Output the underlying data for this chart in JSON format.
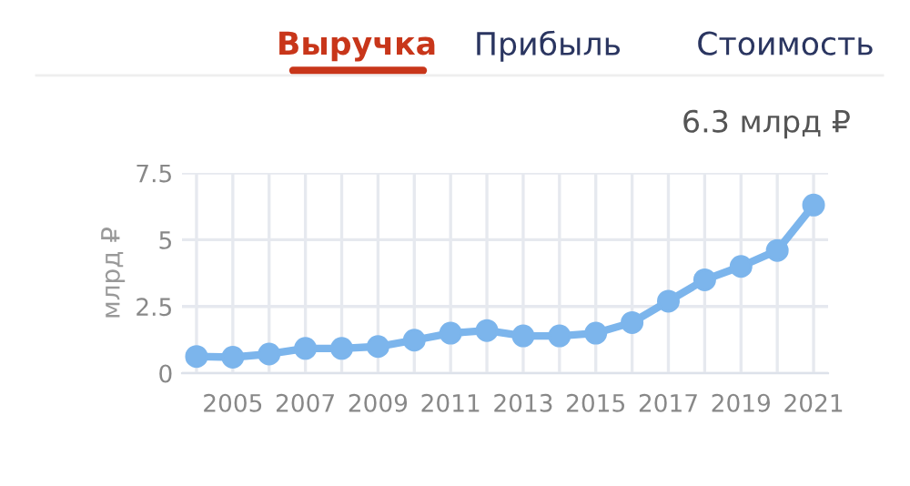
{
  "chart_data": {
    "type": "line",
    "title": "Выручка",
    "subtitle": "6.3 млрд ₽",
    "annotations": [
      "Прибыль",
      "Стоимость"
    ],
    "ylabel": "млрд ₽",
    "categories": [
      null,
      "2005",
      null,
      "2007",
      null,
      "2009",
      null,
      "2011",
      null,
      "2013",
      null,
      "2015",
      null,
      "2017",
      null,
      "2019",
      null,
      "2021"
    ],
    "series": [
      {
        "color": "#7cb5ec",
        "values": [
          0.63,
          0.6,
          0.72,
          0.93,
          0.93,
          1.0,
          1.24,
          1.5,
          1.6,
          1.4,
          1.4,
          1.5,
          1.9,
          2.7,
          3.5,
          4.0,
          4.6,
          6.3
        ]
      }
    ],
    "ylim": [
      0,
      7.5
    ],
    "yticks": [
      0,
      2.5,
      5,
      7.5
    ],
    "grid": true,
    "marker": "circle",
    "line_style": "solid"
  }
}
